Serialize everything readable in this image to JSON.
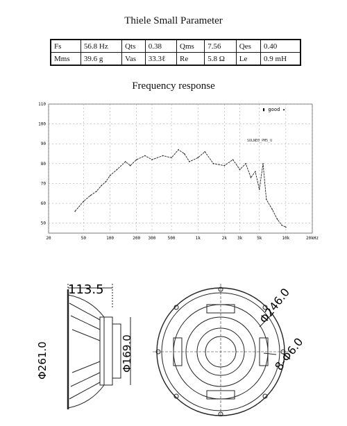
{
  "thiele_small": {
    "title": "Thiele Small Parameter",
    "rows": [
      [
        {
          "label": "Fs",
          "value": "56.8 Hz"
        },
        {
          "label": "Qts",
          "value": "0.38"
        },
        {
          "label": "Qms",
          "value": "7.56"
        },
        {
          "label": "Qes",
          "value": "0.40"
        }
      ],
      [
        {
          "label": "Mms",
          "value": "39.6 g"
        },
        {
          "label": "Vas",
          "value": "33.3ℓ"
        },
        {
          "label": "Re",
          "value": "5.8  Ω"
        },
        {
          "label": "Le",
          "value": "0.9 mH"
        }
      ]
    ]
  },
  "frequency_response": {
    "title": "Frequency response",
    "y_ticks": [
      "110",
      "100",
      "90",
      "80",
      "70",
      "60",
      "50"
    ],
    "x_ticks": [
      "20",
      "50",
      "100",
      "200",
      "300",
      "500",
      "1k",
      "2k",
      "3k",
      "5k",
      "10k",
      "20kHz"
    ],
    "legend_text": "▮ good ▸",
    "curve_tag": "SOLNE0_PM5_U"
  },
  "chart_data": {
    "type": "line",
    "xscale": "log",
    "xlim": [
      20,
      20000
    ],
    "ylim": [
      45,
      110
    ],
    "x": [
      40,
      50,
      60,
      70,
      80,
      90,
      100,
      120,
      150,
      170,
      200,
      250,
      300,
      400,
      500,
      600,
      700,
      800,
      1000,
      1200,
      1500,
      2000,
      2500,
      3000,
      3500,
      4000,
      4500,
      5000,
      5500,
      6000,
      7000,
      8000,
      9000,
      10000
    ],
    "y": [
      56,
      61,
      64,
      66,
      69,
      71,
      74,
      77,
      81,
      79,
      82,
      84,
      82,
      84,
      83,
      87,
      85,
      81,
      83,
      86,
      80,
      79,
      82,
      77,
      80,
      73,
      76,
      67,
      80,
      62,
      57,
      52,
      49,
      48
    ],
    "title": "Frequency response",
    "xlabel": "",
    "ylabel": ""
  },
  "dimensions": {
    "depth": "113.5",
    "outer_diameter": "Φ261.0",
    "magnet_diameter": "Φ169.0",
    "bolt_circle": "Φ246.0",
    "mount_holes": "8-Φ6.0"
  }
}
